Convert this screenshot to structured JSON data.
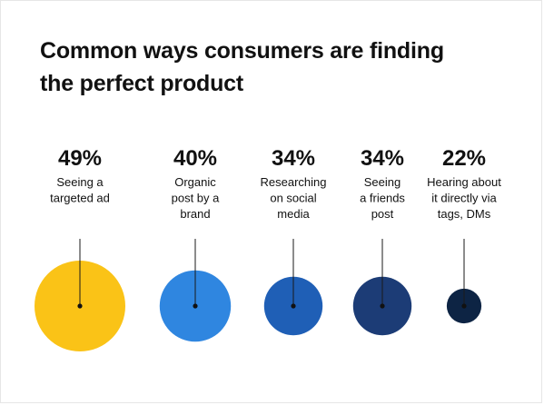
{
  "title_lines": [
    "Common ways consumers are finding",
    "the perfect product"
  ],
  "chart_data": {
    "type": "bubble",
    "title": "Common ways consumers are finding the perfect product",
    "unit": "%",
    "categories": [
      "Seeing a targeted ad",
      "Organic post by a brand",
      "Researching on social media",
      "Seeing a friends post",
      "Hearing about it directly via tags, DMs"
    ],
    "category_lines": [
      [
        "Seeing a",
        "targeted ad"
      ],
      [
        "Organic",
        "post by a",
        "brand"
      ],
      [
        "Researching",
        "on social",
        "media"
      ],
      [
        "Seeing",
        "a friends",
        "post"
      ],
      [
        "Hearing about",
        "it directly via",
        "tags, DMs"
      ]
    ],
    "values": [
      49,
      40,
      34,
      34,
      22
    ],
    "value_labels": [
      "49%",
      "40%",
      "34%",
      "34%",
      "22%"
    ],
    "colors": [
      "#fac317",
      "#2f86e0",
      "#1f5fb6",
      "#1c3c76",
      "#0d2444"
    ]
  }
}
